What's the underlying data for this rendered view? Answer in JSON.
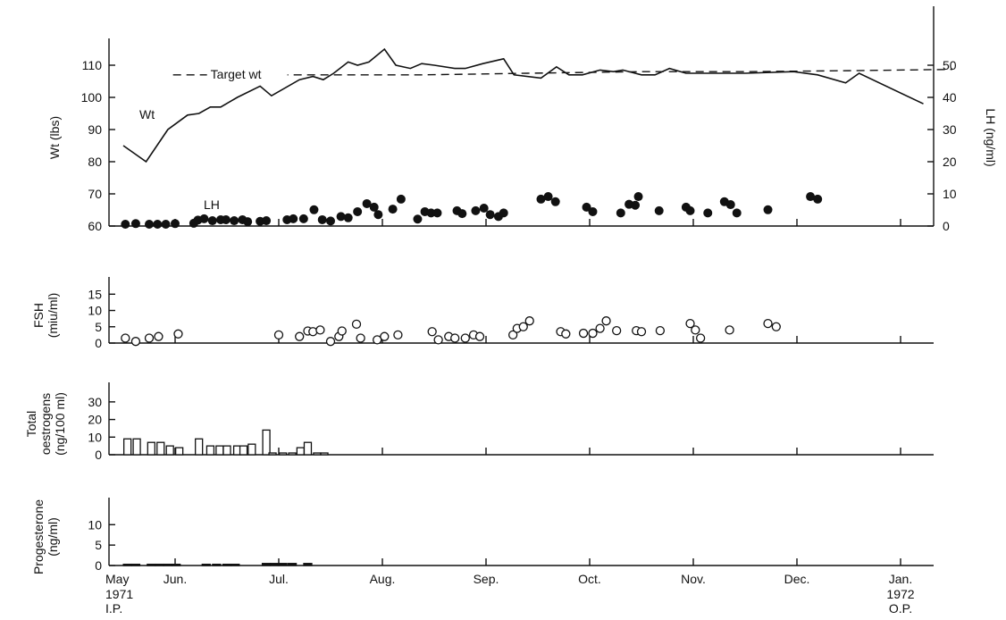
{
  "chart_data": [
    {
      "type": "line",
      "panel": "weight-lh",
      "ylabel": "Wt (lbs)",
      "ylabel_right": "LH (ng/ml)",
      "ylim": [
        60,
        115
      ],
      "yticks": [
        60,
        70,
        80,
        90,
        100,
        110
      ],
      "ylim_right": [
        0,
        55
      ],
      "yticks_right": [
        0,
        10,
        20,
        30,
        40,
        50
      ],
      "annotations": {
        "weight": "Wt",
        "lh": "LH",
        "target": "Target wt"
      },
      "target_weight": [
        {
          "x": 0.48,
          "y": 107
        },
        {
          "x": 1.9,
          "y": 107
        },
        {
          "x": 2.9,
          "y": 107
        },
        {
          "x": 3.9,
          "y": 107.5
        },
        {
          "x": 5.0,
          "y": 108
        },
        {
          "x": 6.0,
          "y": 108
        },
        {
          "x": 7.0,
          "y": 108.3
        },
        {
          "x": 8.0,
          "y": 108.7
        }
      ],
      "series": [
        {
          "name": "Wt",
          "values": [
            {
              "x": 0.0,
              "y": 85
            },
            {
              "x": 0.22,
              "y": 80
            },
            {
              "x": 0.43,
              "y": 90
            },
            {
              "x": 0.62,
              "y": 94.5
            },
            {
              "x": 0.73,
              "y": 95
            },
            {
              "x": 0.84,
              "y": 97
            },
            {
              "x": 0.94,
              "y": 97
            },
            {
              "x": 1.1,
              "y": 100
            },
            {
              "x": 1.32,
              "y": 103.5
            },
            {
              "x": 1.43,
              "y": 100.5
            },
            {
              "x": 1.7,
              "y": 105.5
            },
            {
              "x": 1.83,
              "y": 106.5
            },
            {
              "x": 1.93,
              "y": 105.5
            },
            {
              "x": 2.03,
              "y": 107.5
            },
            {
              "x": 2.17,
              "y": 111
            },
            {
              "x": 2.26,
              "y": 110
            },
            {
              "x": 2.37,
              "y": 111
            },
            {
              "x": 2.52,
              "y": 115
            },
            {
              "x": 2.63,
              "y": 110
            },
            {
              "x": 2.77,
              "y": 109
            },
            {
              "x": 2.88,
              "y": 110.5
            },
            {
              "x": 3.0,
              "y": 110
            },
            {
              "x": 3.2,
              "y": 109
            },
            {
              "x": 3.3,
              "y": 109
            },
            {
              "x": 3.47,
              "y": 110.5
            },
            {
              "x": 3.67,
              "y": 112
            },
            {
              "x": 3.77,
              "y": 107
            },
            {
              "x": 4.03,
              "y": 106
            },
            {
              "x": 4.18,
              "y": 109.5
            },
            {
              "x": 4.3,
              "y": 107
            },
            {
              "x": 4.43,
              "y": 107
            },
            {
              "x": 4.6,
              "y": 108.5
            },
            {
              "x": 4.73,
              "y": 108
            },
            {
              "x": 4.82,
              "y": 108.5
            },
            {
              "x": 5.0,
              "y": 107
            },
            {
              "x": 5.13,
              "y": 107
            },
            {
              "x": 5.27,
              "y": 109
            },
            {
              "x": 5.43,
              "y": 107.5
            },
            {
              "x": 5.6,
              "y": 107.5
            },
            {
              "x": 6.0,
              "y": 107.5
            },
            {
              "x": 6.47,
              "y": 108
            },
            {
              "x": 6.7,
              "y": 107
            },
            {
              "x": 6.97,
              "y": 104.5
            },
            {
              "x": 7.1,
              "y": 107.5
            },
            {
              "x": 7.72,
              "y": 98
            }
          ]
        },
        {
          "name": "LH",
          "axis": "right",
          "values": [
            {
              "x": 0.02,
              "y": 0
            },
            {
              "x": 0.12,
              "y": 0.2
            },
            {
              "x": 0.25,
              "y": 0
            },
            {
              "x": 0.33,
              "y": 0
            },
            {
              "x": 0.41,
              "y": 0
            },
            {
              "x": 0.5,
              "y": 0.2
            },
            {
              "x": 0.68,
              "y": 0.3
            },
            {
              "x": 0.72,
              "y": 1.3
            },
            {
              "x": 0.78,
              "y": 1.7
            },
            {
              "x": 0.86,
              "y": 1.1
            },
            {
              "x": 0.94,
              "y": 1.4
            },
            {
              "x": 0.99,
              "y": 1.4
            },
            {
              "x": 1.07,
              "y": 1.1
            },
            {
              "x": 1.15,
              "y": 1.4
            },
            {
              "x": 1.2,
              "y": 0.8
            },
            {
              "x": 1.32,
              "y": 0.9
            },
            {
              "x": 1.38,
              "y": 1.1
            },
            {
              "x": 1.58,
              "y": 1.4
            },
            {
              "x": 1.64,
              "y": 1.7
            },
            {
              "x": 1.74,
              "y": 1.7
            },
            {
              "x": 1.84,
              "y": 4.5
            },
            {
              "x": 1.92,
              "y": 1.4
            },
            {
              "x": 2.0,
              "y": 1.0
            },
            {
              "x": 2.1,
              "y": 2.4
            },
            {
              "x": 2.17,
              "y": 2.0
            },
            {
              "x": 2.26,
              "y": 3.9
            },
            {
              "x": 2.35,
              "y": 6.4
            },
            {
              "x": 2.42,
              "y": 5.3
            },
            {
              "x": 2.46,
              "y": 3.0
            },
            {
              "x": 2.6,
              "y": 4.7
            },
            {
              "x": 2.68,
              "y": 7.8
            },
            {
              "x": 2.84,
              "y": 1.6
            },
            {
              "x": 2.91,
              "y": 3.9
            },
            {
              "x": 2.97,
              "y": 3.5
            },
            {
              "x": 3.03,
              "y": 3.5
            },
            {
              "x": 3.22,
              "y": 4.2
            },
            {
              "x": 3.27,
              "y": 3.3
            },
            {
              "x": 3.4,
              "y": 4.2
            },
            {
              "x": 3.48,
              "y": 5.0
            },
            {
              "x": 3.54,
              "y": 3.0
            },
            {
              "x": 3.62,
              "y": 2.4
            },
            {
              "x": 3.67,
              "y": 3.5
            },
            {
              "x": 4.03,
              "y": 7.8
            },
            {
              "x": 4.1,
              "y": 8.6
            },
            {
              "x": 4.17,
              "y": 7.0
            },
            {
              "x": 4.47,
              "y": 5.3
            },
            {
              "x": 4.53,
              "y": 3.9
            },
            {
              "x": 4.8,
              "y": 3.5
            },
            {
              "x": 4.88,
              "y": 6.2
            },
            {
              "x": 4.94,
              "y": 5.9
            },
            {
              "x": 4.97,
              "y": 8.6
            },
            {
              "x": 5.17,
              "y": 4.2
            },
            {
              "x": 5.43,
              "y": 5.3
            },
            {
              "x": 5.47,
              "y": 4.2
            },
            {
              "x": 5.64,
              "y": 3.5
            },
            {
              "x": 5.8,
              "y": 7.0
            },
            {
              "x": 5.86,
              "y": 6.1
            },
            {
              "x": 5.92,
              "y": 3.5
            },
            {
              "x": 6.22,
              "y": 4.5
            },
            {
              "x": 6.63,
              "y": 8.6
            },
            {
              "x": 6.7,
              "y": 7.8
            }
          ]
        }
      ]
    },
    {
      "type": "scatter",
      "panel": "fsh",
      "ylabel": "FSH (miu/ml)",
      "ylim": [
        0,
        17
      ],
      "yticks": [
        0,
        5,
        10,
        15
      ],
      "series": [
        {
          "name": "FSH",
          "values": [
            {
              "x": 0.02,
              "y": 1.5
            },
            {
              "x": 0.12,
              "y": 0.5
            },
            {
              "x": 0.25,
              "y": 1.5
            },
            {
              "x": 0.34,
              "y": 2.0
            },
            {
              "x": 0.53,
              "y": 2.8
            },
            {
              "x": 1.5,
              "y": 2.5
            },
            {
              "x": 1.7,
              "y": 2.0
            },
            {
              "x": 1.78,
              "y": 3.7
            },
            {
              "x": 1.83,
              "y": 3.5
            },
            {
              "x": 1.9,
              "y": 4.0
            },
            {
              "x": 2.0,
              "y": 0.5
            },
            {
              "x": 2.08,
              "y": 2.0
            },
            {
              "x": 2.11,
              "y": 3.7
            },
            {
              "x": 2.25,
              "y": 5.8
            },
            {
              "x": 2.29,
              "y": 1.5
            },
            {
              "x": 2.45,
              "y": 1.0
            },
            {
              "x": 2.52,
              "y": 2.0
            },
            {
              "x": 2.65,
              "y": 2.5
            },
            {
              "x": 2.98,
              "y": 3.5
            },
            {
              "x": 3.04,
              "y": 1.0
            },
            {
              "x": 3.14,
              "y": 2.0
            },
            {
              "x": 3.2,
              "y": 1.5
            },
            {
              "x": 3.3,
              "y": 1.5
            },
            {
              "x": 3.38,
              "y": 2.5
            },
            {
              "x": 3.44,
              "y": 2.0
            },
            {
              "x": 3.76,
              "y": 2.5
            },
            {
              "x": 3.8,
              "y": 4.5
            },
            {
              "x": 3.86,
              "y": 5.0
            },
            {
              "x": 3.92,
              "y": 6.8
            },
            {
              "x": 4.22,
              "y": 3.5
            },
            {
              "x": 4.27,
              "y": 2.8
            },
            {
              "x": 4.44,
              "y": 3.0
            },
            {
              "x": 4.53,
              "y": 3.0
            },
            {
              "x": 4.6,
              "y": 4.5
            },
            {
              "x": 4.66,
              "y": 6.8
            },
            {
              "x": 4.76,
              "y": 3.8
            },
            {
              "x": 4.95,
              "y": 3.8
            },
            {
              "x": 5.0,
              "y": 3.5
            },
            {
              "x": 5.18,
              "y": 3.8
            },
            {
              "x": 5.47,
              "y": 6.0
            },
            {
              "x": 5.52,
              "y": 4.0
            },
            {
              "x": 5.57,
              "y": 1.5
            },
            {
              "x": 5.85,
              "y": 4.0
            },
            {
              "x": 6.22,
              "y": 6.0
            },
            {
              "x": 6.3,
              "y": 5.0
            }
          ]
        }
      ]
    },
    {
      "type": "bar",
      "panel": "oestrogens",
      "ylabel": "Total oestrogens (ng/100 ml)",
      "ylim": [
        0,
        35
      ],
      "yticks": [
        0,
        10,
        20,
        30
      ],
      "series": [
        {
          "name": "Total oestrogens",
          "values": [
            {
              "x": 0.04,
              "y": 9
            },
            {
              "x": 0.13,
              "y": 9
            },
            {
              "x": 0.27,
              "y": 7
            },
            {
              "x": 0.36,
              "y": 7
            },
            {
              "x": 0.45,
              "y": 5
            },
            {
              "x": 0.54,
              "y": 4
            },
            {
              "x": 0.73,
              "y": 9
            },
            {
              "x": 0.84,
              "y": 5
            },
            {
              "x": 0.93,
              "y": 5
            },
            {
              "x": 1.0,
              "y": 5
            },
            {
              "x": 1.1,
              "y": 5
            },
            {
              "x": 1.16,
              "y": 5
            },
            {
              "x": 1.24,
              "y": 6
            },
            {
              "x": 1.38,
              "y": 14
            },
            {
              "x": 1.44,
              "y": 1
            },
            {
              "x": 1.54,
              "y": 1
            },
            {
              "x": 1.63,
              "y": 1
            },
            {
              "x": 1.71,
              "y": 4
            },
            {
              "x": 1.78,
              "y": 7
            },
            {
              "x": 1.87,
              "y": 1
            },
            {
              "x": 1.94,
              "y": 1
            }
          ]
        }
      ]
    },
    {
      "type": "bar",
      "panel": "progesterone",
      "ylabel": "Progesterone (ng/ml)",
      "ylim": [
        0,
        14
      ],
      "yticks": [
        0,
        5,
        10
      ],
      "series": [
        {
          "name": "Progesterone",
          "values": [
            {
              "x": 0.04,
              "y": 0.3
            },
            {
              "x": 0.12,
              "y": 0.3
            },
            {
              "x": 0.27,
              "y": 0.3
            },
            {
              "x": 0.35,
              "y": 0.3
            },
            {
              "x": 0.43,
              "y": 0.3
            },
            {
              "x": 0.51,
              "y": 0.3
            },
            {
              "x": 0.8,
              "y": 0.3
            },
            {
              "x": 0.9,
              "y": 0.3
            },
            {
              "x": 1.0,
              "y": 0.3
            },
            {
              "x": 1.08,
              "y": 0.3
            },
            {
              "x": 1.38,
              "y": 0.5
            },
            {
              "x": 1.46,
              "y": 0.5
            },
            {
              "x": 1.54,
              "y": 0.5
            },
            {
              "x": 1.63,
              "y": 0.5
            },
            {
              "x": 1.78,
              "y": 0.5
            }
          ]
        }
      ]
    }
  ],
  "x_axis": {
    "months": [
      {
        "pos": 0,
        "label": "May",
        "sub1": "1971",
        "sub2": "I.P."
      },
      {
        "pos": 0.5,
        "label": "Jun.",
        "sub1": "",
        "sub2": ""
      },
      {
        "pos": 1.5,
        "label": "Jul.",
        "sub1": "",
        "sub2": ""
      },
      {
        "pos": 2.5,
        "label": "Aug.",
        "sub1": "",
        "sub2": ""
      },
      {
        "pos": 3.5,
        "label": "Sep.",
        "sub1": "",
        "sub2": ""
      },
      {
        "pos": 4.5,
        "label": "Oct.",
        "sub1": "",
        "sub2": ""
      },
      {
        "pos": 5.5,
        "label": "Nov.",
        "sub1": "",
        "sub2": ""
      },
      {
        "pos": 6.5,
        "label": "Dec.",
        "sub1": "",
        "sub2": ""
      },
      {
        "pos": 7.5,
        "label": "Jan.",
        "sub1": "1972",
        "sub2": "O.P."
      }
    ],
    "ticks": [
      0.5,
      1.5,
      2.5,
      3.5,
      4.5,
      5.5,
      6.5,
      7.5
    ]
  }
}
